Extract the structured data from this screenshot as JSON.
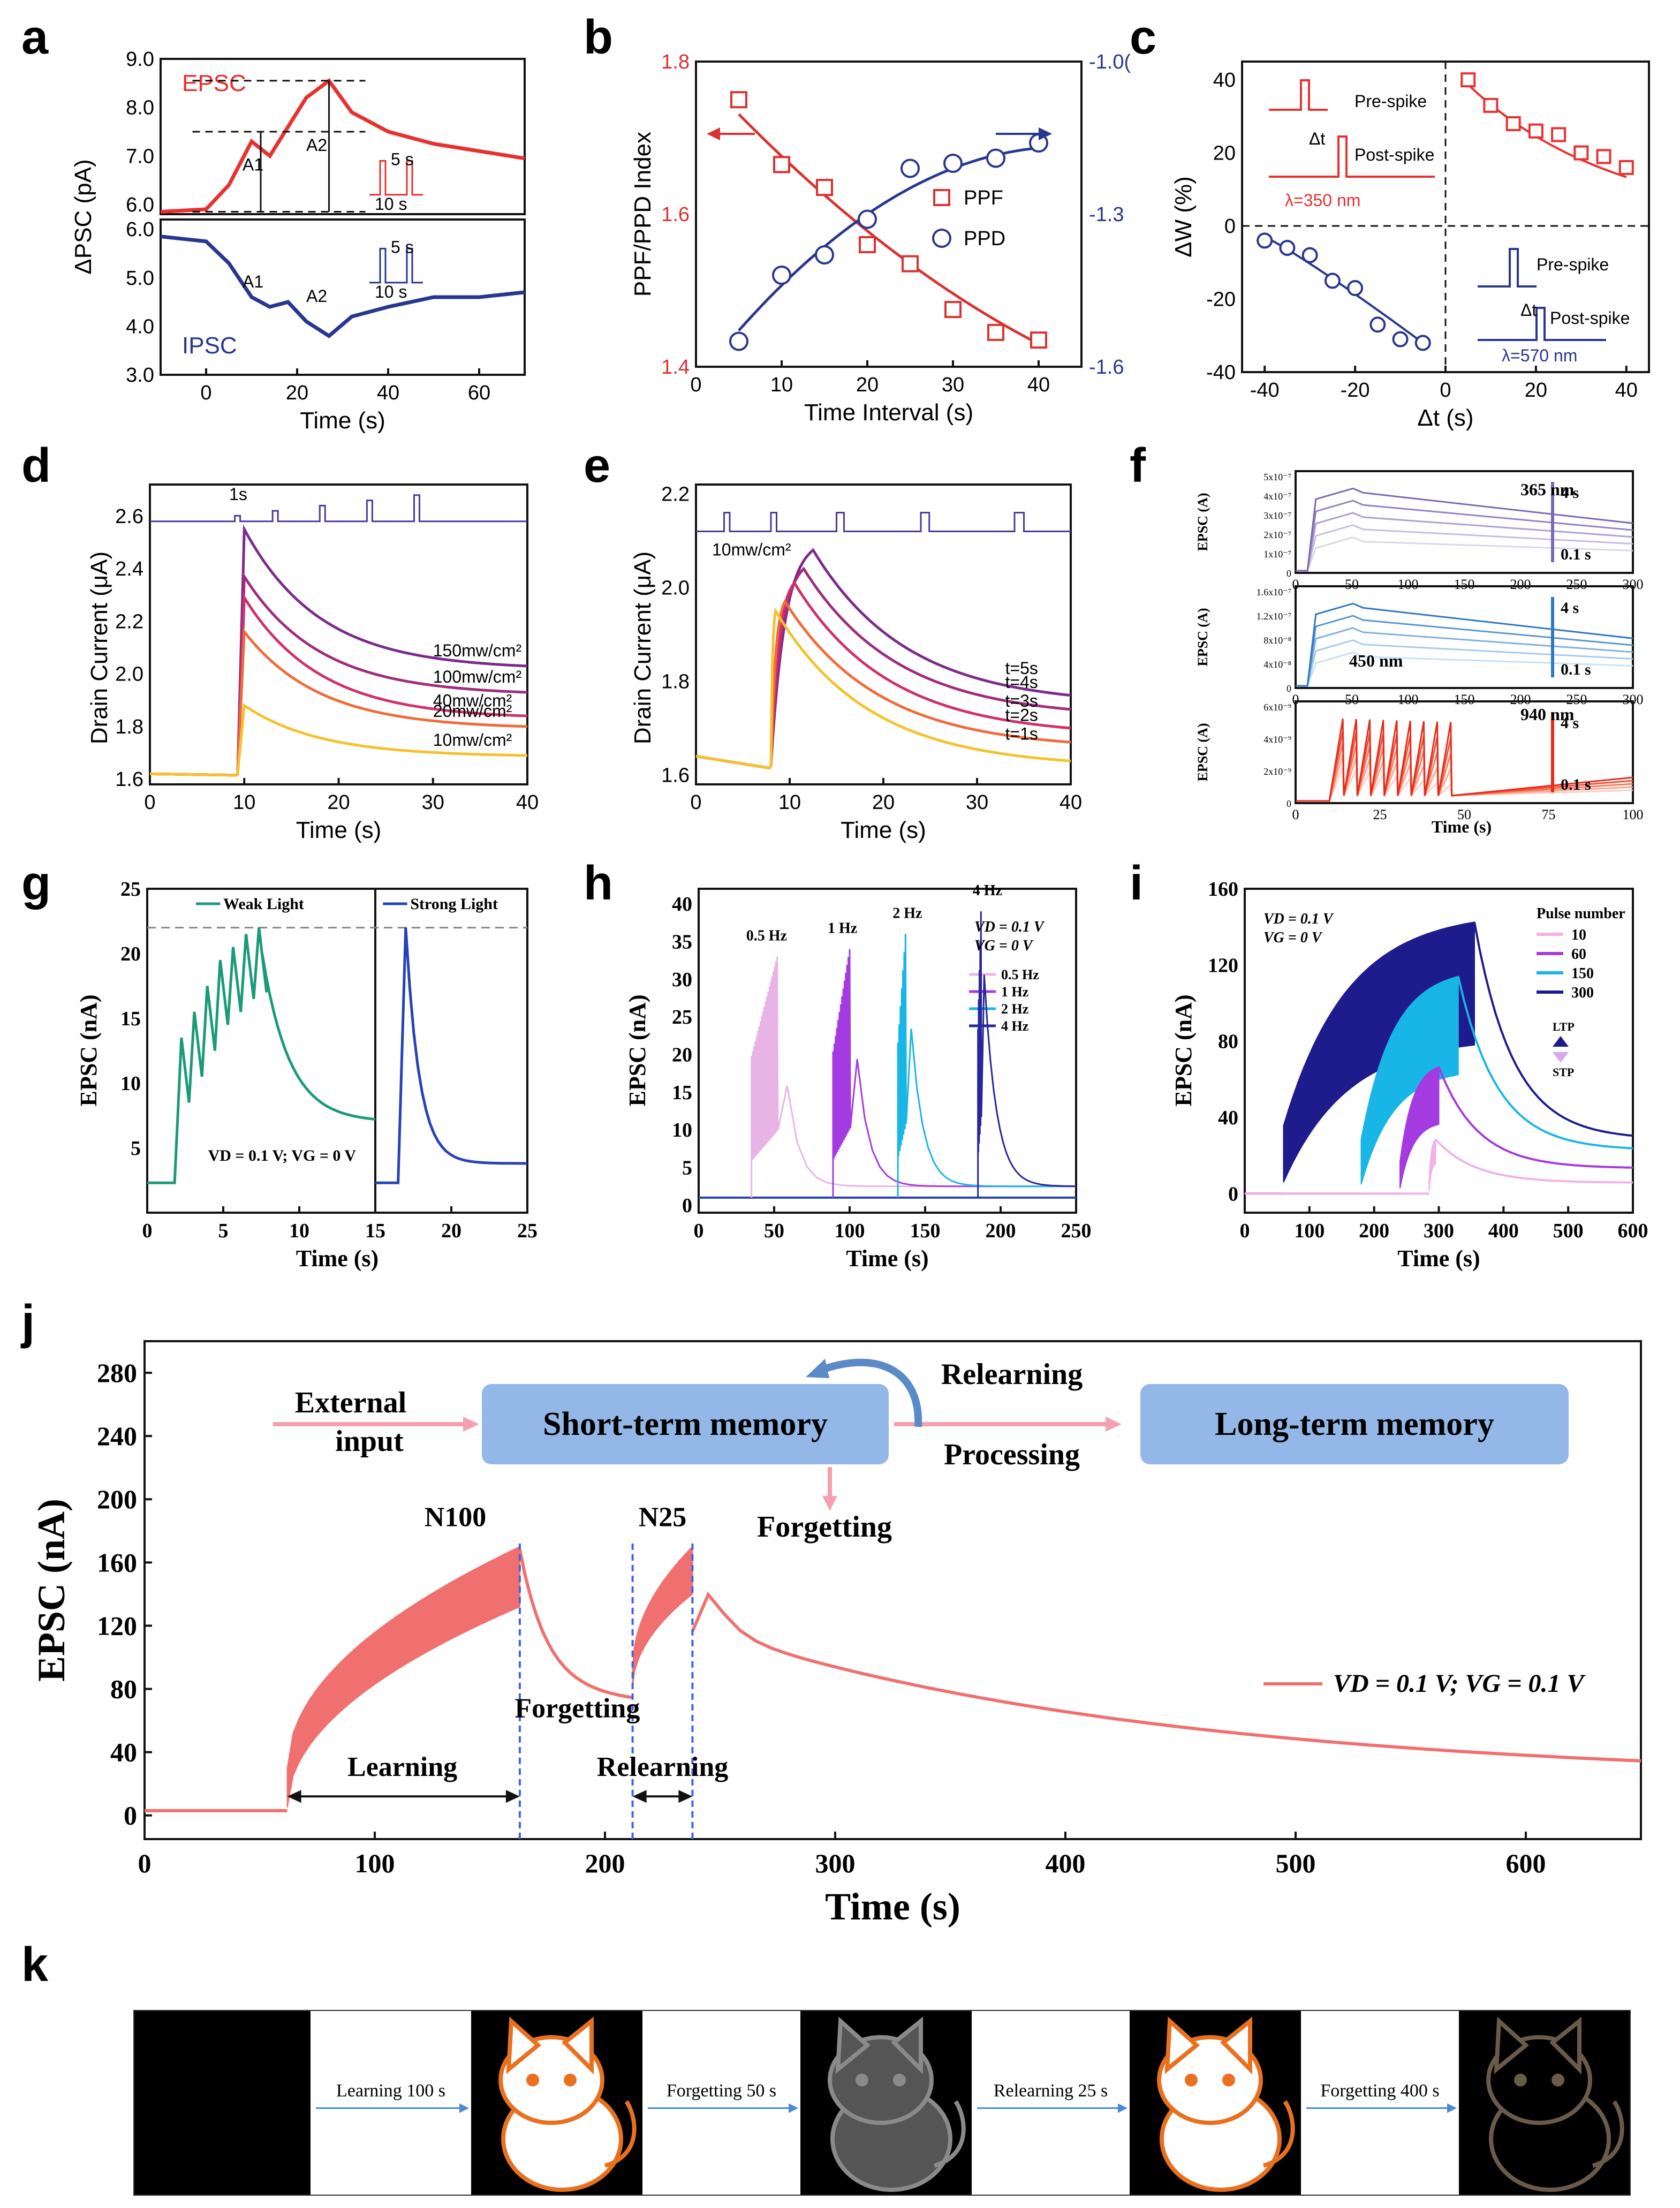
{
  "panels": [
    "a",
    "b",
    "c",
    "d",
    "e",
    "f",
    "g",
    "h",
    "i",
    "j",
    "k"
  ],
  "chart_data": [
    {
      "id": "a",
      "type": "line",
      "ylabel": "ΔPSC (pA)",
      "xlabel": "Time (s)",
      "x_ticks": [
        "0",
        "20",
        "40",
        "60"
      ],
      "y_top_ticks": [
        "6.0",
        "7.0",
        "8.0",
        "9.0"
      ],
      "y_bottom_ticks": [
        "3.0",
        "4.0",
        "5.0",
        "6.0"
      ],
      "labels": {
        "epsc": "EPSC",
        "ipsc": "IPSC",
        "a1": "A1",
        "a2": "A2",
        "five": "5 s",
        "ten": "10 s"
      },
      "series": [
        {
          "name": "EPSC",
          "color": "#e8312f",
          "x": [
            -10,
            0,
            5,
            10,
            14,
            18,
            22,
            27,
            32,
            40,
            50,
            60,
            70
          ],
          "y": [
            5.85,
            5.9,
            6.4,
            7.3,
            7.0,
            7.6,
            8.2,
            8.55,
            7.9,
            7.5,
            7.25,
            7.1,
            6.95
          ]
        },
        {
          "name": "IPSC",
          "color": "#28368f",
          "x": [
            -10,
            0,
            5,
            10,
            14,
            18,
            22,
            27,
            32,
            40,
            50,
            60,
            70
          ],
          "y": [
            5.85,
            5.75,
            5.3,
            4.6,
            4.4,
            4.5,
            4.1,
            3.8,
            4.2,
            4.4,
            4.6,
            4.6,
            4.7
          ]
        }
      ]
    },
    {
      "id": "b",
      "type": "scatter",
      "ylabel": "PPF/PPD Index",
      "xlabel": "Time Interval (s)",
      "x_ticks": [
        "0",
        "10",
        "20",
        "30",
        "40"
      ],
      "y_left_ticks": [
        "1.4",
        "1.6",
        "1.8"
      ],
      "y_right_ticks": [
        "-1.6",
        "-1.3",
        "-1.0("
      ],
      "x": [
        5,
        10,
        15,
        20,
        25,
        30,
        35,
        40
      ],
      "series": [
        {
          "name": "PPF",
          "color": "#d9322f",
          "values": [
            1.75,
            1.665,
            1.635,
            1.56,
            1.535,
            1.475,
            1.445,
            1.435
          ]
        },
        {
          "name": "PPD",
          "color": "#28368f",
          "values": [
            -1.55,
            -1.42,
            -1.38,
            -1.31,
            -1.21,
            -1.2,
            -1.19,
            -1.16
          ]
        }
      ]
    },
    {
      "id": "c",
      "type": "scatter",
      "ylabel": "ΔW (%)",
      "xlabel": "Δt (s)",
      "x_ticks": [
        "-40",
        "-20",
        "0",
        "20",
        "40"
      ],
      "y_ticks": [
        "-40",
        "-20",
        "0",
        "20",
        "40"
      ],
      "labels": {
        "pre": "Pre-spike",
        "post": "Post-spike",
        "dt": "Δt",
        "l1": "λ=350 nm",
        "l2": "λ=570 nm"
      },
      "series": [
        {
          "name": "positive",
          "color": "#e8312f",
          "x": [
            5,
            10,
            15,
            20,
            25,
            30,
            35,
            40
          ],
          "values": [
            40,
            33,
            28,
            26,
            25,
            20,
            19,
            16
          ]
        },
        {
          "name": "negative",
          "color": "#28368f",
          "x": [
            -40,
            -35,
            -30,
            -25,
            -20,
            -15,
            -10,
            -5
          ],
          "values": [
            -4,
            -6,
            -8,
            -15,
            -17,
            -27,
            -31,
            -32
          ]
        }
      ]
    },
    {
      "id": "d",
      "type": "line",
      "ylabel": "Drain Current (μA)",
      "xlabel": "Time (s)",
      "x_ticks": [
        "0",
        "10",
        "20",
        "30",
        "40"
      ],
      "y_ticks": [
        "1.6",
        "1.8",
        "2.0",
        "2.2",
        "2.4",
        "2.6"
      ],
      "pulse_label": "1s",
      "series": [
        {
          "name": "150mw/cm²",
          "color": "#7b2a8c",
          "peak": 2.55,
          "end": 2.03
        },
        {
          "name": "100mw/cm²",
          "color": "#a02c7c",
          "peak": 2.37,
          "end": 1.93
        },
        {
          "name": "40mw/cm²",
          "color": "#d0306a",
          "peak": 2.29,
          "end": 1.84
        },
        {
          "name": "20mw/cm²",
          "color": "#f06b3a",
          "peak": 2.16,
          "end": 1.8
        },
        {
          "name": "10mw/cm²",
          "color": "#f5c12c",
          "peak": 1.88,
          "end": 1.69
        }
      ]
    },
    {
      "id": "e",
      "type": "line",
      "ylabel": "Drain Current (μA)",
      "xlabel": "Time (s)",
      "x_ticks": [
        "0",
        "10",
        "20",
        "30",
        "40"
      ],
      "y_ticks": [
        "1.6",
        "1.8",
        "2.0",
        "2.2"
      ],
      "intensity": "10mw/cm²",
      "series": [
        {
          "name": "t=5s",
          "color": "#7b2a8c",
          "tp": 12.5,
          "peak": 2.08,
          "end": 1.77
        },
        {
          "name": "t=4s",
          "color": "#a02c7c",
          "tp": 11.5,
          "peak": 2.04,
          "end": 1.74
        },
        {
          "name": "t=3s",
          "color": "#d0306a",
          "tp": 10.5,
          "peak": 2.01,
          "end": 1.7
        },
        {
          "name": "t=2s",
          "color": "#f06b3a",
          "tp": 9.5,
          "peak": 1.97,
          "end": 1.67
        },
        {
          "name": "t=1s",
          "color": "#f5c12c",
          "tp": 8.5,
          "peak": 1.95,
          "end": 1.63
        }
      ]
    },
    {
      "id": "f",
      "type": "line",
      "ylabel": "EPSC (A)",
      "xlabel": "Time (s)",
      "sub": [
        {
          "wl": "365 nm",
          "hi": "4 s",
          "lo": "0.1 s",
          "x_ticks": [
            "0",
            "50",
            "100",
            "150",
            "200",
            "250",
            "300"
          ],
          "y_ticks": [
            "0",
            "1x10⁻⁷",
            "2x10⁻⁷",
            "3x10⁻⁷",
            "4x10⁻⁷",
            "5x10⁻⁷"
          ]
        },
        {
          "wl": "450 nm",
          "hi": "4 s",
          "lo": "0.1 s",
          "x_ticks": [
            "0",
            "50",
            "100",
            "150",
            "200",
            "250",
            "300"
          ],
          "y_ticks": [
            "0",
            "4x10⁻⁸",
            "8x10⁻⁸",
            "1.2x10⁻⁷",
            "1.6x10⁻⁷"
          ]
        },
        {
          "wl": "940 nm",
          "hi": "4 s",
          "lo": "0.1 s",
          "x_ticks": [
            "0",
            "25",
            "50",
            "75",
            "100"
          ],
          "y_ticks": [
            "0",
            "2x10⁻⁹",
            "4x10⁻⁹",
            "6x10⁻⁹"
          ]
        }
      ]
    },
    {
      "id": "g",
      "type": "line",
      "ylabel": "EPSC (nA)",
      "xlabel": "Time (s)",
      "x_ticks": [
        "0",
        "5",
        "10",
        "15",
        "20",
        "25"
      ],
      "y_ticks": [
        "5",
        "10",
        "15",
        "20",
        "25"
      ],
      "annotation": "VD = 0.1 V; VG = 0 V",
      "series": [
        {
          "name": "Weak Light",
          "color": "#1a9a78"
        },
        {
          "name": "Strong Light",
          "color": "#2741b8"
        }
      ]
    },
    {
      "id": "h",
      "type": "line",
      "ylabel": "EPSC (nA)",
      "xlabel": "Time (s)",
      "x_ticks": [
        "0",
        "50",
        "100",
        "150",
        "200",
        "250"
      ],
      "y_ticks": [
        "0",
        "5",
        "10",
        "15",
        "20",
        "25",
        "30",
        "35",
        "40"
      ],
      "vd": "VD = 0.1 V",
      "vg": "VG = 0 V",
      "series": [
        {
          "name": "0.5 Hz",
          "color": "#e8b4e6",
          "x0": 35,
          "x1": 52,
          "peak": 33
        },
        {
          "name": "1 Hz",
          "color": "#a43be0",
          "x0": 89,
          "x1": 100,
          "peak": 34
        },
        {
          "name": "2 Hz",
          "color": "#18b6e6",
          "x0": 132,
          "x1": 137,
          "peak": 36
        },
        {
          "name": "4 Hz",
          "color": "#27269a",
          "x0": 185,
          "x1": 187,
          "peak": 39
        }
      ]
    },
    {
      "id": "i",
      "type": "line",
      "ylabel": "EPSC (nA)",
      "xlabel": "Time (s)",
      "x_ticks": [
        "0",
        "100",
        "200",
        "300",
        "400",
        "500",
        "600"
      ],
      "y_ticks": [
        "0",
        "40",
        "80",
        "120",
        "160"
      ],
      "vd": "VD = 0.1 V",
      "vg": "VG = 0 V",
      "legend_title": "Pulse number",
      "ltp": "LTP",
      "stp": "STP",
      "series": [
        {
          "name": "10",
          "color": "#f0b2e8",
          "x0": 285,
          "x1": 295,
          "peak": 30
        },
        {
          "name": "60",
          "color": "#a43be0",
          "x0": 240,
          "x1": 300,
          "peak": 70
        },
        {
          "name": "150",
          "color": "#18b6e6",
          "x0": 180,
          "x1": 330,
          "peak": 120
        },
        {
          "name": "300",
          "color": "#1e1b8c",
          "x0": 60,
          "x1": 355,
          "peak": 150
        }
      ]
    },
    {
      "id": "j",
      "type": "line",
      "ylabel": "EPSC (nA)",
      "xlabel": "Time (s)",
      "x_ticks": [
        "0",
        "100",
        "200",
        "300",
        "400",
        "500",
        "600"
      ],
      "y_ticks": [
        "0",
        "40",
        "80",
        "120",
        "160",
        "200",
        "240",
        "280"
      ],
      "legend": "VD = 0.1 V; VG = 0.1 V",
      "labels": {
        "external": "External",
        "input": "input",
        "stm": "Short-term memory",
        "ltm": "Long-term memory",
        "relearning_top": "Relearning",
        "processing": "Processing",
        "forgetting_top": "Forgetting",
        "n100": "N100",
        "n25": "N25",
        "learning": "Learning",
        "forgetting": "Forgetting",
        "relearning": "Relearning"
      },
      "series": [
        {
          "name": "EPSC",
          "color": "#f07070",
          "x": [
            0,
            62,
            163,
            212,
            238,
            300,
            400,
            500,
            600,
            650
          ],
          "y": [
            3,
            3,
            170,
            78,
            170,
            118,
            80,
            50,
            36,
            29
          ]
        }
      ]
    }
  ],
  "k": {
    "steps": [
      "Learning  100 s",
      "Forgetting  50 s",
      "Relearning  25 s",
      "Forgetting  400 s"
    ]
  }
}
